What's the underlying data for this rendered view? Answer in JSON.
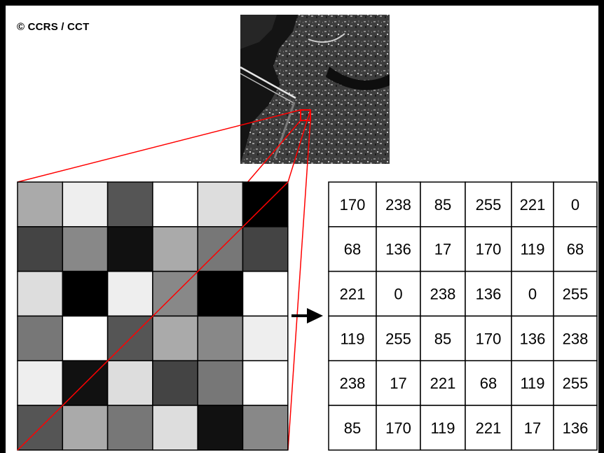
{
  "copyright": "© CCRS / CCT",
  "image_description_label": "",
  "colors": {
    "frame": "#000000",
    "zoom_lines": "#ff0000",
    "grid_lines": "#000000"
  },
  "pixel_values": [
    [
      170,
      238,
      85,
      255,
      221,
      0
    ],
    [
      68,
      136,
      17,
      170,
      119,
      68
    ],
    [
      221,
      0,
      238,
      136,
      0,
      255
    ],
    [
      119,
      255,
      85,
      170,
      136,
      238
    ],
    [
      238,
      17,
      221,
      68,
      119,
      255
    ],
    [
      85,
      170,
      119,
      221,
      17,
      136
    ]
  ],
  "arrow_icon": "right-arrow-icon"
}
